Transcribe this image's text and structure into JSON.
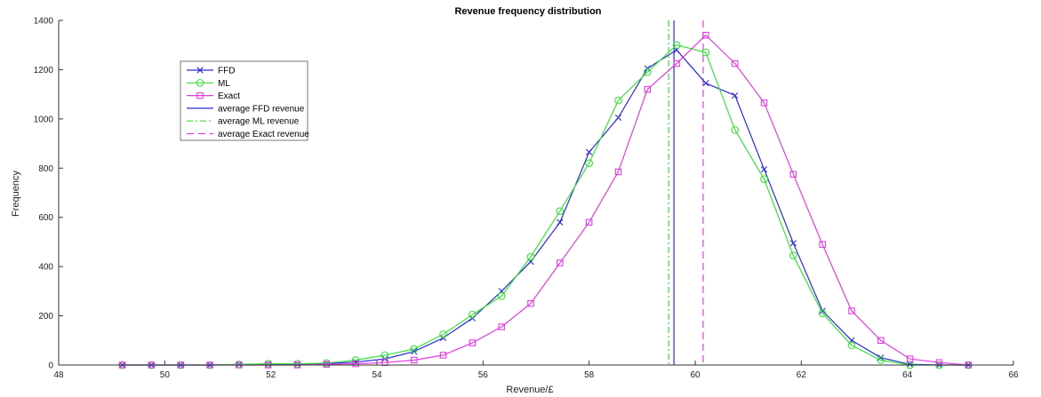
{
  "chart_data": {
    "type": "line",
    "title": "Revenue frequency distribution",
    "xlabel": "Revenue/£",
    "ylabel": "Frequency",
    "xlim": [
      48,
      66
    ],
    "ylim": [
      0,
      1400
    ],
    "xticks": [
      "48",
      "50",
      "52",
      "54",
      "56",
      "58",
      "60",
      "62",
      "64",
      "66"
    ],
    "yticks": [
      "0",
      "200",
      "400",
      "600",
      "800",
      "1000",
      "1200",
      "1400"
    ],
    "grid": false,
    "legend_position": "top-left",
    "x": [
      49.2,
      49.75,
      50.3,
      50.85,
      51.4,
      51.95,
      52.5,
      53.05,
      53.6,
      54.15,
      54.7,
      55.25,
      55.8,
      56.35,
      56.9,
      57.45,
      58.0,
      58.55,
      59.1,
      59.65,
      60.2,
      60.75,
      61.3,
      61.85,
      62.4,
      62.95,
      63.5,
      64.05,
      64.6,
      65.15
    ],
    "series": [
      {
        "name": "FFD",
        "color": "#2a2ad6",
        "marker": "x",
        "style": "solid",
        "values": [
          0,
          0,
          0,
          0,
          2,
          3,
          3,
          6,
          12,
          25,
          55,
          110,
          190,
          300,
          420,
          580,
          865,
          1005,
          1205,
          1280,
          1145,
          1095,
          795,
          495,
          220,
          100,
          30,
          3,
          0,
          0
        ]
      },
      {
        "name": "ML",
        "color": "#3ce03c",
        "marker": "o",
        "style": "solid",
        "values": [
          0,
          0,
          0,
          0,
          3,
          5,
          5,
          8,
          20,
          40,
          65,
          125,
          205,
          280,
          440,
          625,
          820,
          1075,
          1190,
          1300,
          1270,
          955,
          755,
          445,
          210,
          80,
          20,
          0,
          0,
          0
        ]
      },
      {
        "name": "Exact",
        "color": "#e23ce2",
        "marker": "s",
        "style": "solid",
        "values": [
          0,
          0,
          0,
          0,
          0,
          0,
          0,
          3,
          5,
          10,
          20,
          40,
          90,
          155,
          250,
          415,
          580,
          785,
          1120,
          1225,
          1340,
          1225,
          1065,
          775,
          490,
          220,
          100,
          25,
          10,
          0
        ]
      },
      {
        "name": "average FFD revenue",
        "color": "#2a2ad6",
        "style": "solid",
        "vertical_line_x": 59.6
      },
      {
        "name": "average ML revenue",
        "color": "#3ce03c",
        "style": "dash-dot",
        "vertical_line_x": 59.5
      },
      {
        "name": "average Exact revenue",
        "color": "#e23ce2",
        "style": "dashed",
        "vertical_line_x": 60.15
      }
    ]
  }
}
